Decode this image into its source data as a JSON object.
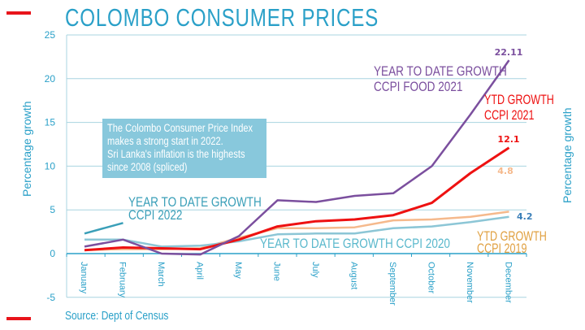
{
  "title": "COLOMBO CONSUMER PRICES",
  "source": "Source: Dept of Census",
  "note": [
    "The Colombo Consumer Price Index",
    "makes a strong start in 2022.",
    "Sri Lanka's inflation is the highests",
    "since 2008 (spliced)"
  ],
  "chart_data": {
    "type": "line",
    "title": "COLOMBO CONSUMER PRICES",
    "ylabel": "Percentage growth",
    "ylabel_right": "Percentage growth",
    "ylim": [
      -5,
      25
    ],
    "yticks": [
      -5,
      0,
      5,
      10,
      15,
      20,
      25
    ],
    "grid": true,
    "categories": [
      "January",
      "February",
      "March",
      "April",
      "May",
      "June",
      "July",
      "August",
      "September",
      "October",
      "November",
      "December"
    ],
    "series": [
      {
        "name": "YEAR TO DATE GROWTH CCPI FOOD 2021",
        "label_lines": [
          "YEAR TO DATE GROWTH",
          "CCPI FOOD 2021"
        ],
        "color": "#7b4f9e",
        "values": [
          0.8,
          1.6,
          0.0,
          -0.1,
          2.0,
          6.1,
          5.9,
          6.6,
          6.9,
          10.0,
          15.9,
          22.11
        ],
        "end_label": "22.11"
      },
      {
        "name": "YTD GROWTH CCPI 2021",
        "label_lines": [
          "YTD GROWTH",
          "CCPI 2021"
        ],
        "color": "#ee1111",
        "values": [
          0.4,
          0.7,
          0.6,
          0.5,
          1.6,
          3.1,
          3.7,
          3.9,
          4.4,
          5.8,
          9.2,
          12.1
        ],
        "end_label": "12.1"
      },
      {
        "name": "YTD GROWTH CCPI 2019",
        "label_lines": [
          "YTD GROWTH",
          "CCPI 2019"
        ],
        "color": "#f5b98c",
        "values": [
          0.4,
          0.5,
          0.5,
          0.6,
          1.8,
          2.9,
          2.9,
          3.0,
          3.8,
          3.9,
          4.2,
          4.8
        ],
        "end_label": "4.8"
      },
      {
        "name": "YEAR TO DATE GROWTH CCPI 2020",
        "label_lines": [
          "YEAR TO DATE GROWTH CCPI 2020"
        ],
        "color": "#8cc6d6",
        "values": [
          1.6,
          1.6,
          0.8,
          0.9,
          1.4,
          2.2,
          2.3,
          2.3,
          2.9,
          3.1,
          3.6,
          4.2
        ],
        "end_label": "4.2"
      },
      {
        "name": "YEAR TO DATE GROWTH CCPI 2022",
        "label_lines": [
          "YEAR TO DATE GROWTH",
          "CCPI 2022"
        ],
        "color": "#3a9fb8",
        "values": [
          2.3,
          3.5,
          null,
          null,
          null,
          null,
          null,
          null,
          null,
          null,
          null,
          null
        ]
      }
    ]
  }
}
